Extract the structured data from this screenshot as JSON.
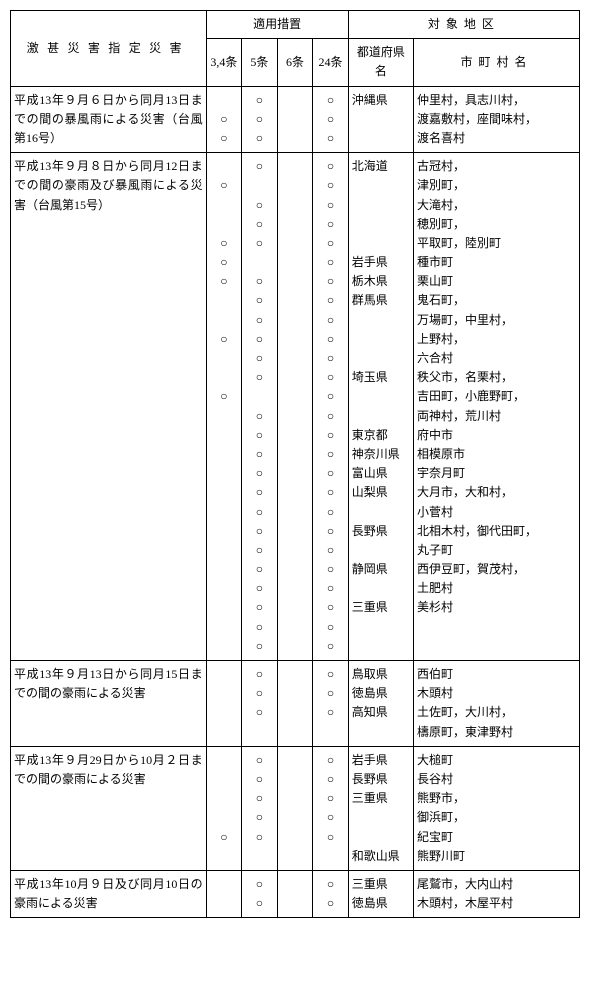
{
  "headers": {
    "disaster": "激甚災害指定災害",
    "measures": "適用措置",
    "area": "対象地区",
    "art34": "3,4条",
    "art5": "5条",
    "art6": "6条",
    "art24": "24条",
    "pref": "都道府県名",
    "muni": "市町村名"
  },
  "rows": [
    {
      "disaster": "平成13年９月６日から同月13日までの間の暴風雨による災害（台風第16号）",
      "art34": [
        "",
        "○",
        "○"
      ],
      "art5": [
        "○",
        "○",
        "○"
      ],
      "art6": [
        "",
        "",
        ""
      ],
      "art24": [
        "○",
        "○",
        "○"
      ],
      "pref": [
        "沖縄県",
        "",
        ""
      ],
      "muni": [
        "仲里村，具志川村，",
        "渡嘉敷村，座間味村，",
        "渡名喜村"
      ]
    },
    {
      "disaster": "平成13年９月８日から同月12日までの間の豪雨及び暴風雨による災害（台風第15号）",
      "art34": [
        "",
        "○",
        "",
        "",
        "○",
        "○",
        "○",
        "",
        "",
        "○",
        "",
        "",
        "○",
        "",
        "",
        "",
        "",
        "",
        "",
        "",
        "",
        "",
        "",
        "",
        "",
        ""
      ],
      "art5": [
        "○",
        "",
        "○",
        "○",
        "○",
        "",
        "○",
        "○",
        "○",
        "○",
        "○",
        "○",
        "",
        "○",
        "○",
        "○",
        "○",
        "○",
        "○",
        "○",
        "○",
        "○",
        "○",
        "○",
        "○",
        "○"
      ],
      "art6": [
        "",
        "",
        "",
        "",
        "",
        "",
        "",
        "",
        "",
        "",
        "",
        "",
        "",
        "",
        "",
        "",
        "",
        "",
        "",
        "",
        "",
        "",
        "",
        "",
        "",
        ""
      ],
      "art24": [
        "○",
        "○",
        "○",
        "○",
        "○",
        "○",
        "○",
        "○",
        "○",
        "○",
        "○",
        "○",
        "○",
        "○",
        "○",
        "○",
        "○",
        "○",
        "○",
        "○",
        "○",
        "○",
        "○",
        "○",
        "○",
        "○"
      ],
      "pref": [
        "北海道",
        "",
        "",
        "",
        "",
        "岩手県",
        "栃木県",
        "群馬県",
        "",
        "",
        "",
        "埼玉県",
        "",
        "",
        "東京都",
        "神奈川県",
        "富山県",
        "山梨県",
        "",
        "長野県",
        "",
        "静岡県",
        "",
        "三重県",
        "",
        ""
      ],
      "muni": [
        "古冠村，",
        "津別町，",
        "大滝村，",
        "穂別町，",
        "平取町，陸別町",
        "種市町",
        "栗山町",
        "鬼石町，",
        "万場町，中里村，",
        "上野村，",
        "六合村",
        "秩父市，名栗村，",
        "吉田町，小鹿野町，",
        "両神村，荒川村",
        "府中市",
        "相模原市",
        "宇奈月町",
        "大月市，大和村，",
        "小菅村",
        "北相木村，御代田町，",
        "丸子町",
        "西伊豆町，賀茂村，",
        "土肥村",
        "美杉村",
        "",
        ""
      ]
    },
    {
      "disaster": "平成13年９月13日から同月15日までの間の豪雨による災害",
      "art34": [
        "",
        "",
        "",
        ""
      ],
      "art5": [
        "○",
        "○",
        "○",
        ""
      ],
      "art6": [
        "",
        "",
        "",
        ""
      ],
      "art24": [
        "○",
        "○",
        "○",
        ""
      ],
      "pref": [
        "鳥取県",
        "徳島県",
        "高知県",
        ""
      ],
      "muni": [
        "西伯町",
        "木頭村",
        "土佐町，大川村，",
        "檮原町，東津野村"
      ]
    },
    {
      "disaster": "平成13年９月29日から10月２日までの間の豪雨による災害",
      "art34": [
        "",
        "",
        "",
        "",
        "○",
        ""
      ],
      "art5": [
        "○",
        "○",
        "○",
        "○",
        "○",
        ""
      ],
      "art6": [
        "",
        "",
        "",
        "",
        "",
        ""
      ],
      "art24": [
        "○",
        "○",
        "○",
        "○",
        "○",
        ""
      ],
      "pref": [
        "岩手県",
        "長野県",
        "三重県",
        "",
        "",
        "和歌山県"
      ],
      "muni": [
        "大槌町",
        "長谷村",
        "熊野市，",
        "御浜町，",
        "紀宝町",
        "熊野川町"
      ]
    },
    {
      "disaster": "平成13年10月９日及び同月10日の豪雨による災害",
      "art34": [
        "",
        ""
      ],
      "art5": [
        "○",
        "○"
      ],
      "art6": [
        "",
        ""
      ],
      "art24": [
        "○",
        "○"
      ],
      "pref": [
        "三重県",
        "徳島県"
      ],
      "muni": [
        "尾鷲市，大内山村",
        "木頭村，木屋平村"
      ]
    }
  ]
}
